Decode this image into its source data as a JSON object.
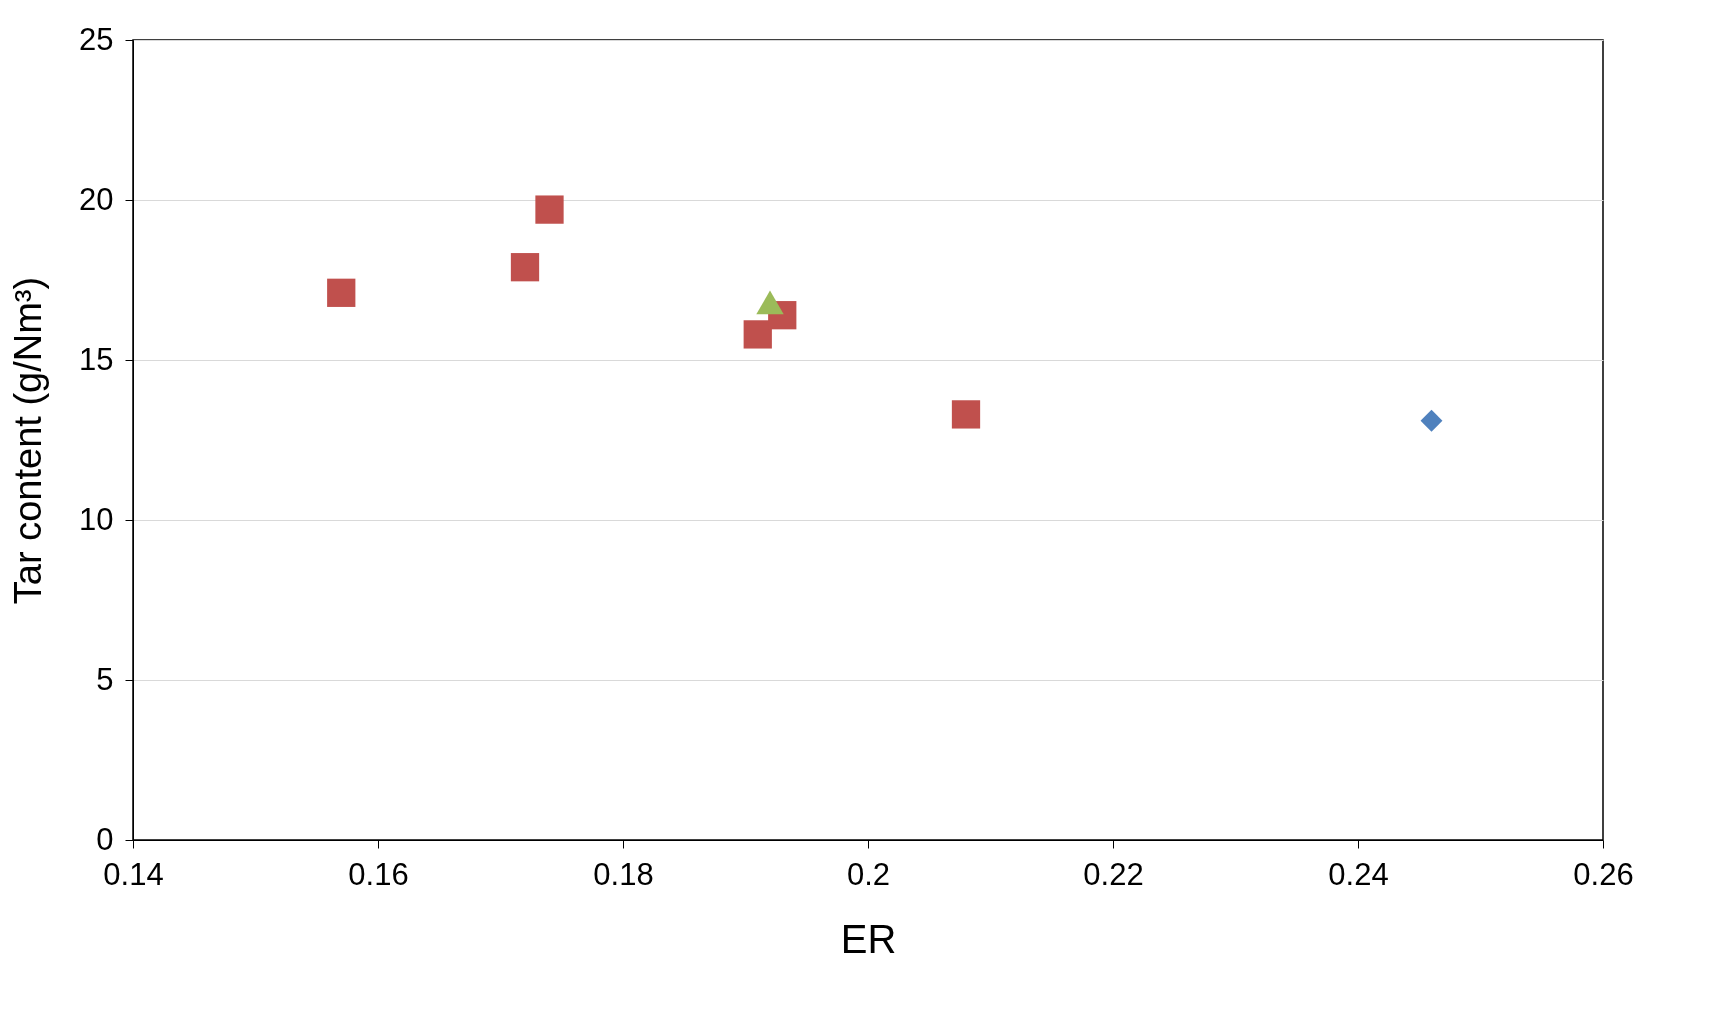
{
  "chart_data": {
    "type": "scatter",
    "xlabel": "ER",
    "ylabel": "Tar content (g/Nm³)",
    "xlim": [
      0.14,
      0.26
    ],
    "xticks": [
      0.14,
      0.16,
      0.18,
      0.2,
      0.22,
      0.24,
      0.26
    ],
    "ylim": [
      0,
      25
    ],
    "yticks": [
      0,
      5,
      10,
      15,
      20,
      25
    ],
    "grid": "y",
    "series": [
      {
        "color": "#c0504d",
        "marker": "square",
        "x": [
          0.157,
          0.172,
          0.174,
          0.191,
          0.193,
          0.208
        ],
        "values": [
          17.1,
          17.9,
          19.7,
          15.8,
          16.4,
          13.3
        ]
      },
      {
        "color": "#9bbb59",
        "marker": "triangle",
        "x": [
          0.192
        ],
        "values": [
          16.8
        ]
      },
      {
        "color": "#4f81bd",
        "marker": "diamond",
        "x": [
          0.246
        ],
        "values": [
          13.1
        ]
      }
    ]
  }
}
